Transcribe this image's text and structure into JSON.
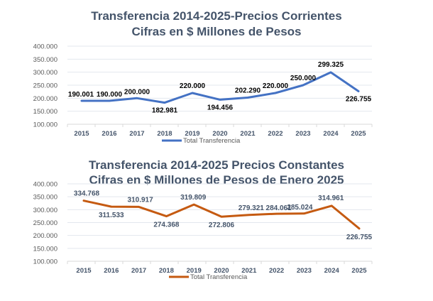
{
  "chart_data": [
    {
      "type": "line",
      "title": "Transferencia 2014-2025-Precios Corrientes",
      "subtitle": "Cifras en $ Millones de Pesos",
      "xlabel": "",
      "ylabel": "",
      "categories": [
        "2015",
        "2016",
        "2017",
        "2018",
        "2019",
        "2020",
        "2021",
        "2022",
        "2023",
        "2024",
        "2025"
      ],
      "series": [
        {
          "name": "Total Transferencia",
          "color": "#4472c4",
          "values": [
            190001,
            190000,
            200000,
            182981,
            220000,
            194456,
            202290,
            220000,
            250000,
            299325,
            226755
          ],
          "labels": [
            "190.001",
            "190.000",
            "200.000",
            "182.981",
            "220.000",
            "194.456",
            "202.290",
            "220.000",
            "250.000",
            "299.325",
            "226.755"
          ]
        }
      ],
      "ylim": [
        100000,
        400000
      ],
      "yticks": [
        "100.000",
        "150.000",
        "200.000",
        "250.000",
        "300.000",
        "350.000",
        "400.000"
      ],
      "grid": true,
      "legend": "bottom"
    },
    {
      "type": "line",
      "title": "Transferencia 2014-2025 Precios Constantes",
      "subtitle": "Cifras en $ Millones de Pesos de Enero 2025",
      "xlabel": "",
      "ylabel": "",
      "categories": [
        "2015",
        "2016",
        "2017",
        "2018",
        "2019",
        "2020",
        "2021",
        "2022",
        "2023",
        "2024",
        "2025"
      ],
      "series": [
        {
          "name": "Total Transferencia",
          "color": "#c55a11",
          "values": [
            334768,
            311533,
            310917,
            274368,
            319809,
            272806,
            279321,
            284061,
            285024,
            314961,
            226755
          ],
          "labels": [
            "334.768",
            "311.533",
            "310.917",
            "274.368",
            "319.809",
            "272.806",
            "279.321",
            "284.061",
            "285.024",
            "314.961",
            "226.755"
          ]
        }
      ],
      "ylim": [
        100000,
        400000
      ],
      "yticks": [
        "100.000",
        "150.000",
        "200.000",
        "250.000",
        "300.000",
        "350.000",
        "400.000"
      ],
      "grid": true,
      "legend": "bottom"
    }
  ]
}
